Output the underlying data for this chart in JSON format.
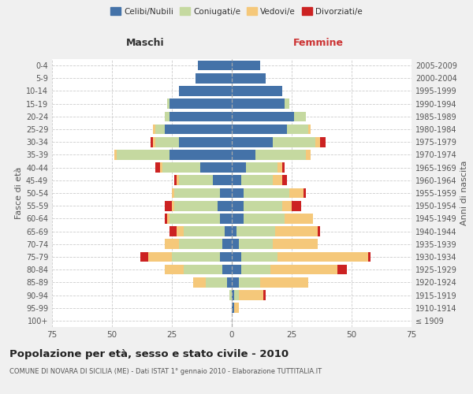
{
  "age_groups": [
    "100+",
    "95-99",
    "90-94",
    "85-89",
    "80-84",
    "75-79",
    "70-74",
    "65-69",
    "60-64",
    "55-59",
    "50-54",
    "45-49",
    "40-44",
    "35-39",
    "30-34",
    "25-29",
    "20-24",
    "15-19",
    "10-14",
    "5-9",
    "0-4"
  ],
  "birth_years": [
    "≤ 1909",
    "1910-1914",
    "1915-1919",
    "1920-1924",
    "1925-1929",
    "1930-1934",
    "1935-1939",
    "1940-1944",
    "1945-1949",
    "1950-1954",
    "1955-1959",
    "1960-1964",
    "1965-1969",
    "1970-1974",
    "1975-1979",
    "1980-1984",
    "1985-1989",
    "1990-1994",
    "1995-1999",
    "2000-2004",
    "2005-2009"
  ],
  "maschi": {
    "celibi": [
      0,
      0,
      0,
      2,
      4,
      5,
      4,
      3,
      5,
      6,
      5,
      8,
      13,
      26,
      22,
      28,
      26,
      26,
      22,
      15,
      14
    ],
    "coniugati": [
      0,
      0,
      1,
      9,
      16,
      20,
      18,
      17,
      21,
      18,
      19,
      14,
      16,
      22,
      10,
      4,
      2,
      1,
      0,
      0,
      0
    ],
    "vedovi": [
      0,
      0,
      0,
      5,
      8,
      10,
      6,
      3,
      1,
      1,
      1,
      1,
      1,
      1,
      1,
      1,
      0,
      0,
      0,
      0,
      0
    ],
    "divorziati": [
      0,
      0,
      0,
      0,
      0,
      3,
      0,
      3,
      1,
      3,
      0,
      1,
      2,
      0,
      1,
      0,
      0,
      0,
      0,
      0,
      0
    ]
  },
  "femmine": {
    "nubili": [
      0,
      1,
      1,
      3,
      4,
      4,
      3,
      2,
      5,
      5,
      5,
      4,
      6,
      10,
      17,
      23,
      26,
      22,
      21,
      14,
      12
    ],
    "coniugate": [
      0,
      0,
      2,
      9,
      12,
      15,
      14,
      16,
      17,
      16,
      19,
      13,
      13,
      21,
      18,
      9,
      5,
      2,
      0,
      0,
      0
    ],
    "vedove": [
      0,
      2,
      10,
      20,
      28,
      38,
      19,
      18,
      12,
      4,
      6,
      4,
      2,
      2,
      2,
      1,
      0,
      0,
      0,
      0,
      0
    ],
    "divorziate": [
      0,
      0,
      1,
      0,
      4,
      1,
      0,
      1,
      0,
      4,
      1,
      2,
      1,
      0,
      2,
      0,
      0,
      0,
      0,
      0,
      0
    ]
  },
  "colors": {
    "celibi": "#4472a8",
    "coniugati": "#c5d9a0",
    "vedovi": "#f5c87a",
    "divorziati": "#cc2222"
  },
  "title": "Popolazione per età, sesso e stato civile - 2010",
  "subtitle": "COMUNE DI NOVARA DI SICILIA (ME) - Dati ISTAT 1° gennaio 2010 - Elaborazione TUTTITALIA.IT",
  "xlabel_left": "Maschi",
  "xlabel_right": "Femmine",
  "ylabel_left": "Fasce di età",
  "ylabel_right": "Anni di nascita",
  "xlim": 75,
  "bg_color": "#f0f0f0",
  "plot_bg_color": "#ffffff",
  "grid_color": "#cccccc"
}
